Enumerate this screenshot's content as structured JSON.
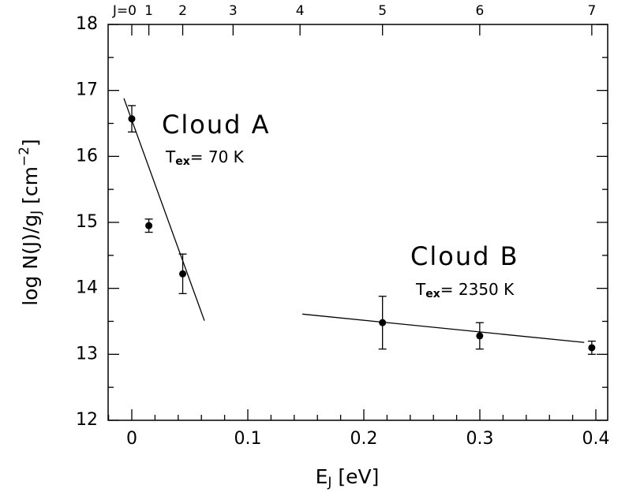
{
  "chart_data": {
    "type": "scatter",
    "xlabel": {
      "base": "E",
      "sub": "J",
      "rest": " [eV]"
    },
    "ylabel": {
      "base": "log N(J)/g",
      "sub": "J",
      "mid": " [cm",
      "sup": "−2",
      "end": "]"
    },
    "xlim": [
      -0.0204,
      0.4102
    ],
    "ylim": [
      12,
      18
    ],
    "xticks": [
      0,
      0.1,
      0.2,
      0.3,
      0.4
    ],
    "yticks": [
      12,
      13,
      14,
      15,
      16,
      17,
      18
    ],
    "xticks_minor": [
      -0.02,
      0.02,
      0.04,
      0.06,
      0.08,
      0.12,
      0.14,
      0.16,
      0.18,
      0.22,
      0.24,
      0.26,
      0.28,
      0.32,
      0.34,
      0.36,
      0.38
    ],
    "yticks_minor": [
      12.5,
      13.5,
      14.5,
      15.5,
      16.5,
      17.5
    ],
    "x2ticks": [
      {
        "value": 0,
        "label": "J=0"
      },
      {
        "value": 0.0147,
        "label": "1"
      },
      {
        "value": 0.0439,
        "label": "2"
      },
      {
        "value": 0.0873,
        "label": "3"
      },
      {
        "value": 0.145,
        "label": "4"
      },
      {
        "value": 0.2161,
        "label": "5"
      },
      {
        "value": 0.2999,
        "label": "6"
      },
      {
        "value": 0.3965,
        "label": "7"
      }
    ],
    "series": [
      {
        "color": "#000000",
        "x": [
          0,
          0.0147,
          0.0439,
          0.2161,
          0.2999,
          0.3965
        ],
        "values": [
          16.57,
          14.95,
          14.22,
          13.48,
          13.28,
          13.1
        ],
        "errors": [
          0.2,
          0.1,
          0.3,
          0.4,
          0.2,
          0.1
        ]
      }
    ],
    "fits": [
      {
        "x": [
          -0.0068,
          0.0626
        ],
        "values": [
          16.88,
          13.51
        ]
      },
      {
        "x": [
          0.147,
          0.39
        ],
        "values": [
          13.61,
          13.18
        ]
      }
    ],
    "annotations": [
      {
        "title": "Cloud A",
        "t": "T",
        "sub": "ex",
        "rest": "= 70 K"
      },
      {
        "title": "Cloud B",
        "t": "T",
        "sub": "ex",
        "rest": "= 2350 K"
      }
    ]
  }
}
